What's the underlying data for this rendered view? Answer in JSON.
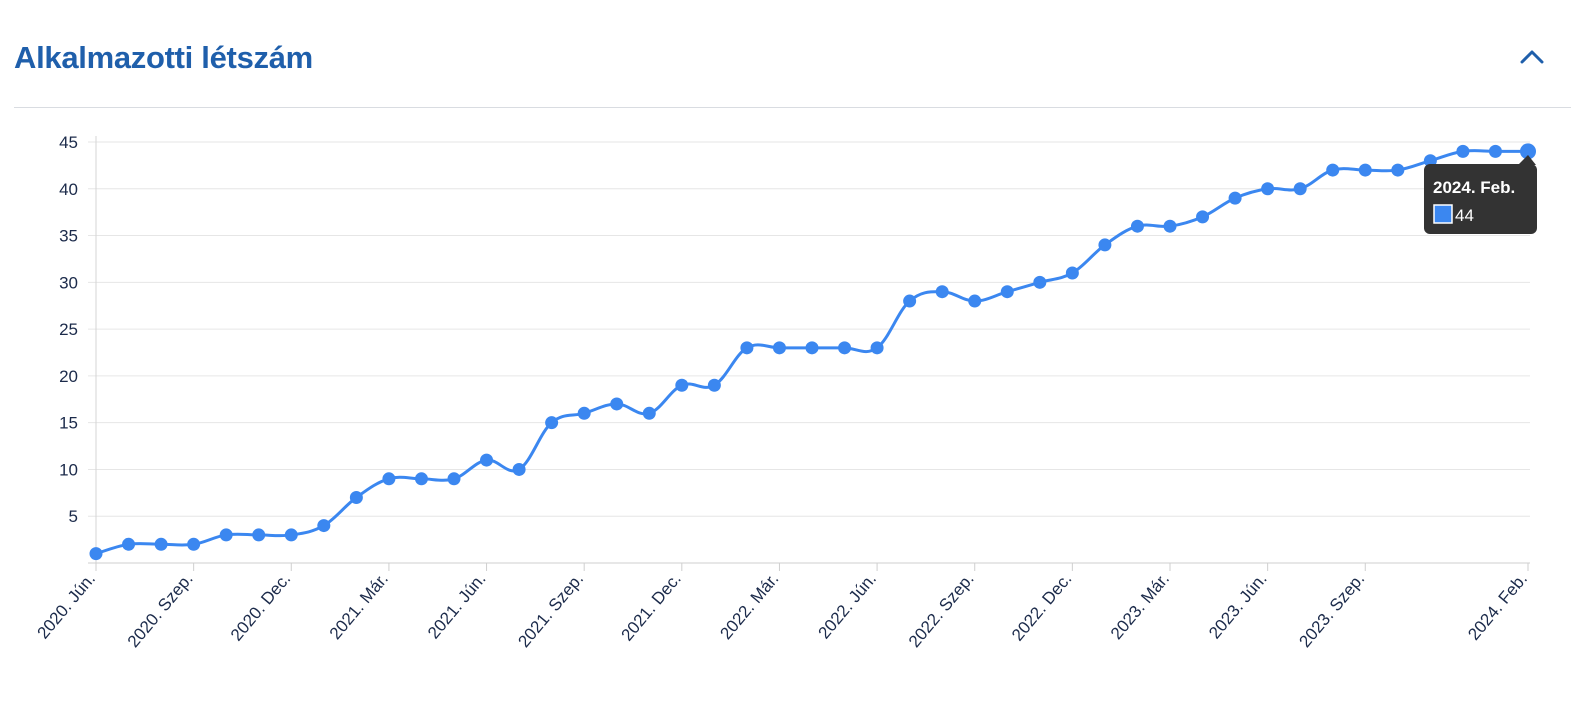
{
  "header": {
    "title": "Alkalmazotti létszám",
    "collapse_icon": "chevron-up-icon"
  },
  "colors": {
    "title": "#1f5fab",
    "line": "#3b87f0",
    "grid": "#e6e6e6",
    "tooltip_bg": "#333333"
  },
  "chart_data": {
    "type": "line",
    "title": "",
    "xlabel": "",
    "ylabel": "",
    "ylim": [
      0,
      45
    ],
    "y_ticks": [
      5,
      10,
      15,
      20,
      25,
      30,
      35,
      40,
      45
    ],
    "x_tick_labels": [
      "2020. Jún.",
      "2020. Szep.",
      "2020. Dec.",
      "2021. Már.",
      "2021. Jún.",
      "2021. Szep.",
      "2021. Dec.",
      "2022. Már.",
      "2022. Jún.",
      "2022. Szep.",
      "2022. Dec.",
      "2023. Már.",
      "2023. Jún.",
      "2023. Szep.",
      "2024. Feb."
    ],
    "x_tick_index": [
      0,
      3,
      6,
      9,
      12,
      15,
      18,
      21,
      24,
      27,
      30,
      33,
      36,
      39,
      44
    ],
    "grid": true,
    "legend": "none",
    "series": [
      {
        "values": [
          1,
          2,
          2,
          2,
          3,
          3,
          3,
          4,
          7,
          9,
          9,
          9,
          11,
          10,
          15,
          16,
          17,
          16,
          19,
          19,
          23,
          23,
          23,
          23,
          23,
          28,
          29,
          28,
          29,
          30,
          31,
          34,
          36,
          36,
          37,
          39,
          40,
          40,
          42,
          42,
          42,
          43,
          44,
          44,
          44
        ]
      }
    ],
    "tooltip": {
      "label": "2024. Feb.",
      "value": "44",
      "index": 44
    }
  }
}
